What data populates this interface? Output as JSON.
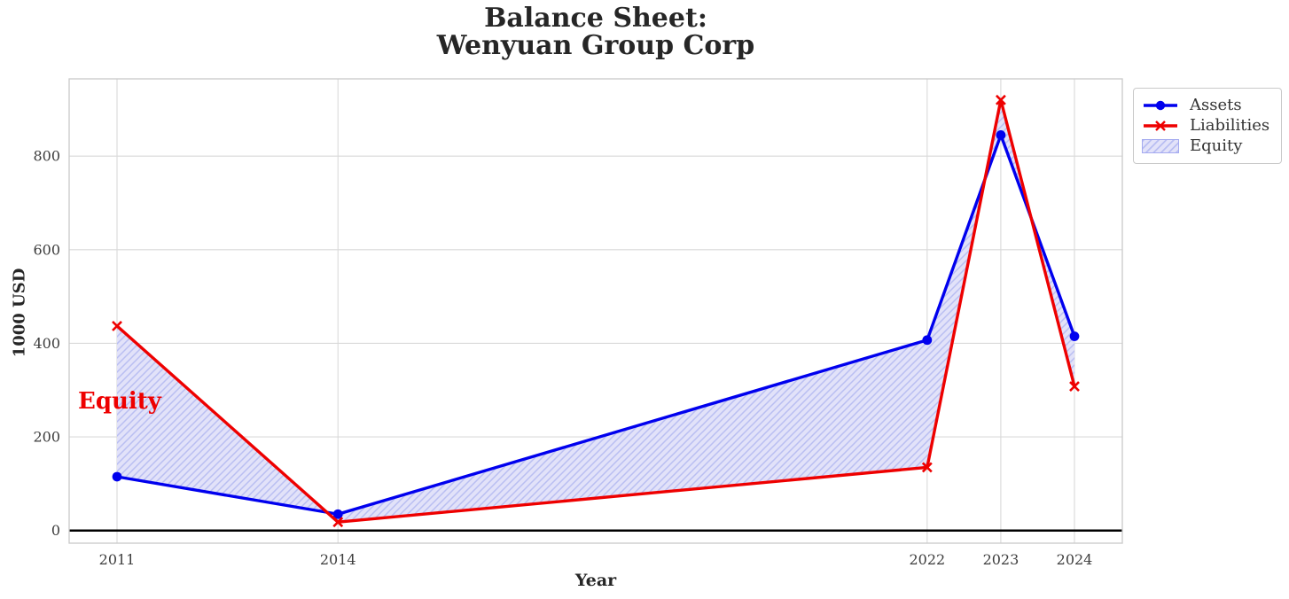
{
  "title": {
    "line1": "Balance Sheet:",
    "line2": "Wenyuan Group Corp"
  },
  "axes": {
    "x_label": "Year",
    "y_label": "1000 USD"
  },
  "annotation": {
    "text": "Equity",
    "color": "#ee0000"
  },
  "legend": {
    "position": "outside-top-right",
    "items": [
      {
        "label": "Assets",
        "symbol": "line-with-circle-marker",
        "color": "#0000ee"
      },
      {
        "label": "Liabilities",
        "symbol": "line-with-x-marker",
        "color": "#ee0000"
      },
      {
        "label": "Equity",
        "symbol": "hatched-patch",
        "fill": "#e2e2f9",
        "hatch_color": "#b9bef2"
      }
    ]
  },
  "chart_data": {
    "type": "line",
    "title": "Balance Sheet:\nWenyuan Group Corp",
    "xlabel": "Year",
    "ylabel": "1000 USD",
    "x": [
      2011,
      2014,
      2022,
      2023,
      2024
    ],
    "x_tick_labels": [
      "2011",
      "2014",
      "2022",
      "2023",
      "2024"
    ],
    "y_ticks": [
      0,
      200,
      400,
      600,
      800
    ],
    "series": [
      {
        "name": "Assets",
        "values": [
          115,
          35,
          407,
          845,
          415
        ],
        "color": "#0000ee",
        "marker": "circle"
      },
      {
        "name": "Liabilities",
        "values": [
          437,
          18,
          135,
          920,
          308
        ],
        "color": "#ee0000",
        "marker": "x"
      }
    ],
    "fill_between": {
      "name": "Equity",
      "between": [
        "Assets",
        "Liabilities"
      ],
      "fill": "#e2e2f9",
      "hatch": "/",
      "hatch_color": "#b9bef2"
    },
    "xlim": [
      2010.35,
      2024.65
    ],
    "ylim": [
      -27,
      965
    ],
    "grid": true,
    "grid_color": "#d9d9d9",
    "zero_line": true,
    "zero_line_color": "#000000",
    "legend_position": "outside-top-right"
  }
}
